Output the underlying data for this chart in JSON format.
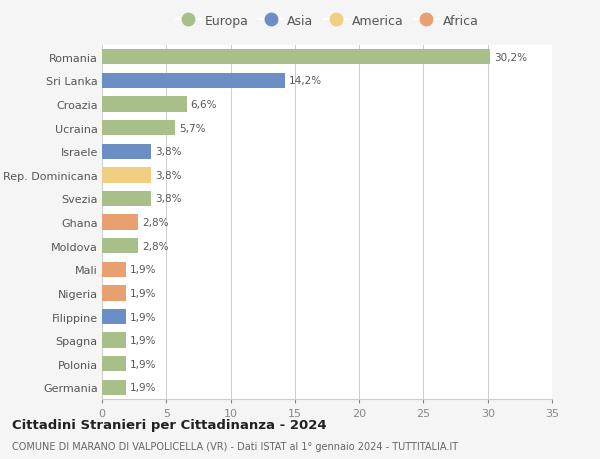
{
  "title": "Cittadini Stranieri per Cittadinanza - 2024",
  "subtitle": "COMUNE DI MARANO DI VALPOLICELLA (VR) - Dati ISTAT al 1° gennaio 2024 - TUTTITALIA.IT",
  "categories": [
    "Romania",
    "Sri Lanka",
    "Croazia",
    "Ucraina",
    "Israele",
    "Rep. Dominicana",
    "Svezia",
    "Ghana",
    "Moldova",
    "Mali",
    "Nigeria",
    "Filippine",
    "Spagna",
    "Polonia",
    "Germania"
  ],
  "values": [
    30.2,
    14.2,
    6.6,
    5.7,
    3.8,
    3.8,
    3.8,
    2.8,
    2.8,
    1.9,
    1.9,
    1.9,
    1.9,
    1.9,
    1.9
  ],
  "labels": [
    "30,2%",
    "14,2%",
    "6,6%",
    "5,7%",
    "3,8%",
    "3,8%",
    "3,8%",
    "2,8%",
    "2,8%",
    "1,9%",
    "1,9%",
    "1,9%",
    "1,9%",
    "1,9%",
    "1,9%"
  ],
  "continents": [
    "Europa",
    "Asia",
    "Europa",
    "Europa",
    "Asia",
    "America",
    "Europa",
    "Africa",
    "Europa",
    "Africa",
    "Africa",
    "Asia",
    "Europa",
    "Europa",
    "Europa"
  ],
  "colors": {
    "Europa": "#a8bf8a",
    "Asia": "#6b8ec4",
    "America": "#f0d080",
    "Africa": "#e8a070"
  },
  "legend_order": [
    "Europa",
    "Asia",
    "America",
    "Africa"
  ],
  "xlim": [
    0,
    35
  ],
  "xticks": [
    0,
    5,
    10,
    15,
    20,
    25,
    30,
    35
  ],
  "background_color": "#f5f5f5",
  "plot_bg_color": "#ffffff",
  "grid_color": "#cccccc",
  "bar_height": 0.65,
  "figsize": [
    6.0,
    4.6
  ],
  "dpi": 100
}
